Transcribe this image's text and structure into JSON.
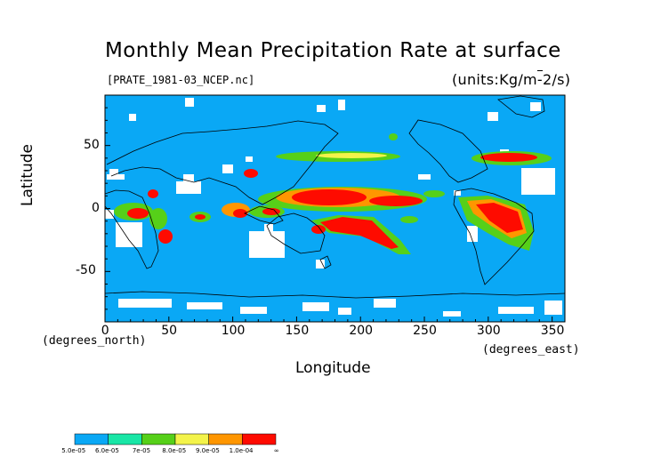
{
  "title": "Monthly Mean Precipitation Rate at surface",
  "source": "[PRATE_1981-03_NCEP.nc]",
  "units": "(units:Kg/m^-2/s)",
  "x_axis": {
    "label": "Longitude",
    "unit": "(degrees_east)",
    "ticks": [
      "0",
      "50",
      "100",
      "150",
      "200",
      "250",
      "300",
      "350"
    ],
    "range": [
      0,
      360
    ]
  },
  "y_axis": {
    "label": "Latitude",
    "unit": "(degrees_north)",
    "ticks": [
      "50",
      "0",
      "-50"
    ],
    "range": [
      -90,
      90
    ]
  },
  "colorbar": {
    "colors": [
      "#0aa8f5",
      "#19e6a6",
      "#56d019",
      "#f3f34a",
      "#ff9600",
      "#fe0b00"
    ],
    "labels": [
      "5.0e-05",
      "6.0e-05",
      "7e-05",
      "8.0e-05",
      "9.0e-05",
      "1.0e-04",
      "∞"
    ]
  },
  "map": {
    "background_color": "#0aa8f5",
    "missing_color": "#ffffff",
    "heavy_regions": [
      {
        "lon": 163,
        "lat": 8
      },
      {
        "lon": 188,
        "lat": -13
      },
      {
        "lon": 312,
        "lat": -8
      },
      {
        "lon": 312,
        "lat": 42
      }
    ]
  }
}
